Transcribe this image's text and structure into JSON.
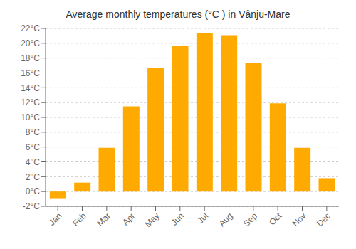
{
  "chart_data": {
    "type": "bar",
    "title": "Average monthly temperatures (°C ) in Vânju-Mare",
    "categories": [
      "Jan",
      "Feb",
      "Mar",
      "Apr",
      "May",
      "Jun",
      "Jul",
      "Aug",
      "Sep",
      "Oct",
      "Nov",
      "Dec"
    ],
    "values": [
      -1.0,
      1.2,
      5.9,
      11.5,
      16.7,
      19.7,
      21.4,
      21.1,
      17.4,
      11.9,
      5.9,
      1.8
    ],
    "color": "#FFAA00",
    "ylim": [
      -2,
      22
    ],
    "yticks": [
      {
        "value": -2,
        "label": "-2°C"
      },
      {
        "value": 0,
        "label": "0°C"
      },
      {
        "value": 2,
        "label": "2°C"
      },
      {
        "value": 4,
        "label": "4°C"
      },
      {
        "value": 6,
        "label": "6°C"
      },
      {
        "value": 8,
        "label": "8°C"
      },
      {
        "value": 10,
        "label": "10°C"
      },
      {
        "value": 12,
        "label": "12°C"
      },
      {
        "value": 14,
        "label": "14°C"
      },
      {
        "value": 16,
        "label": "16°C"
      },
      {
        "value": 18,
        "label": "18°C"
      },
      {
        "value": 20,
        "label": "20°C"
      },
      {
        "value": 22,
        "label": "22°C"
      }
    ],
    "grid": true
  }
}
